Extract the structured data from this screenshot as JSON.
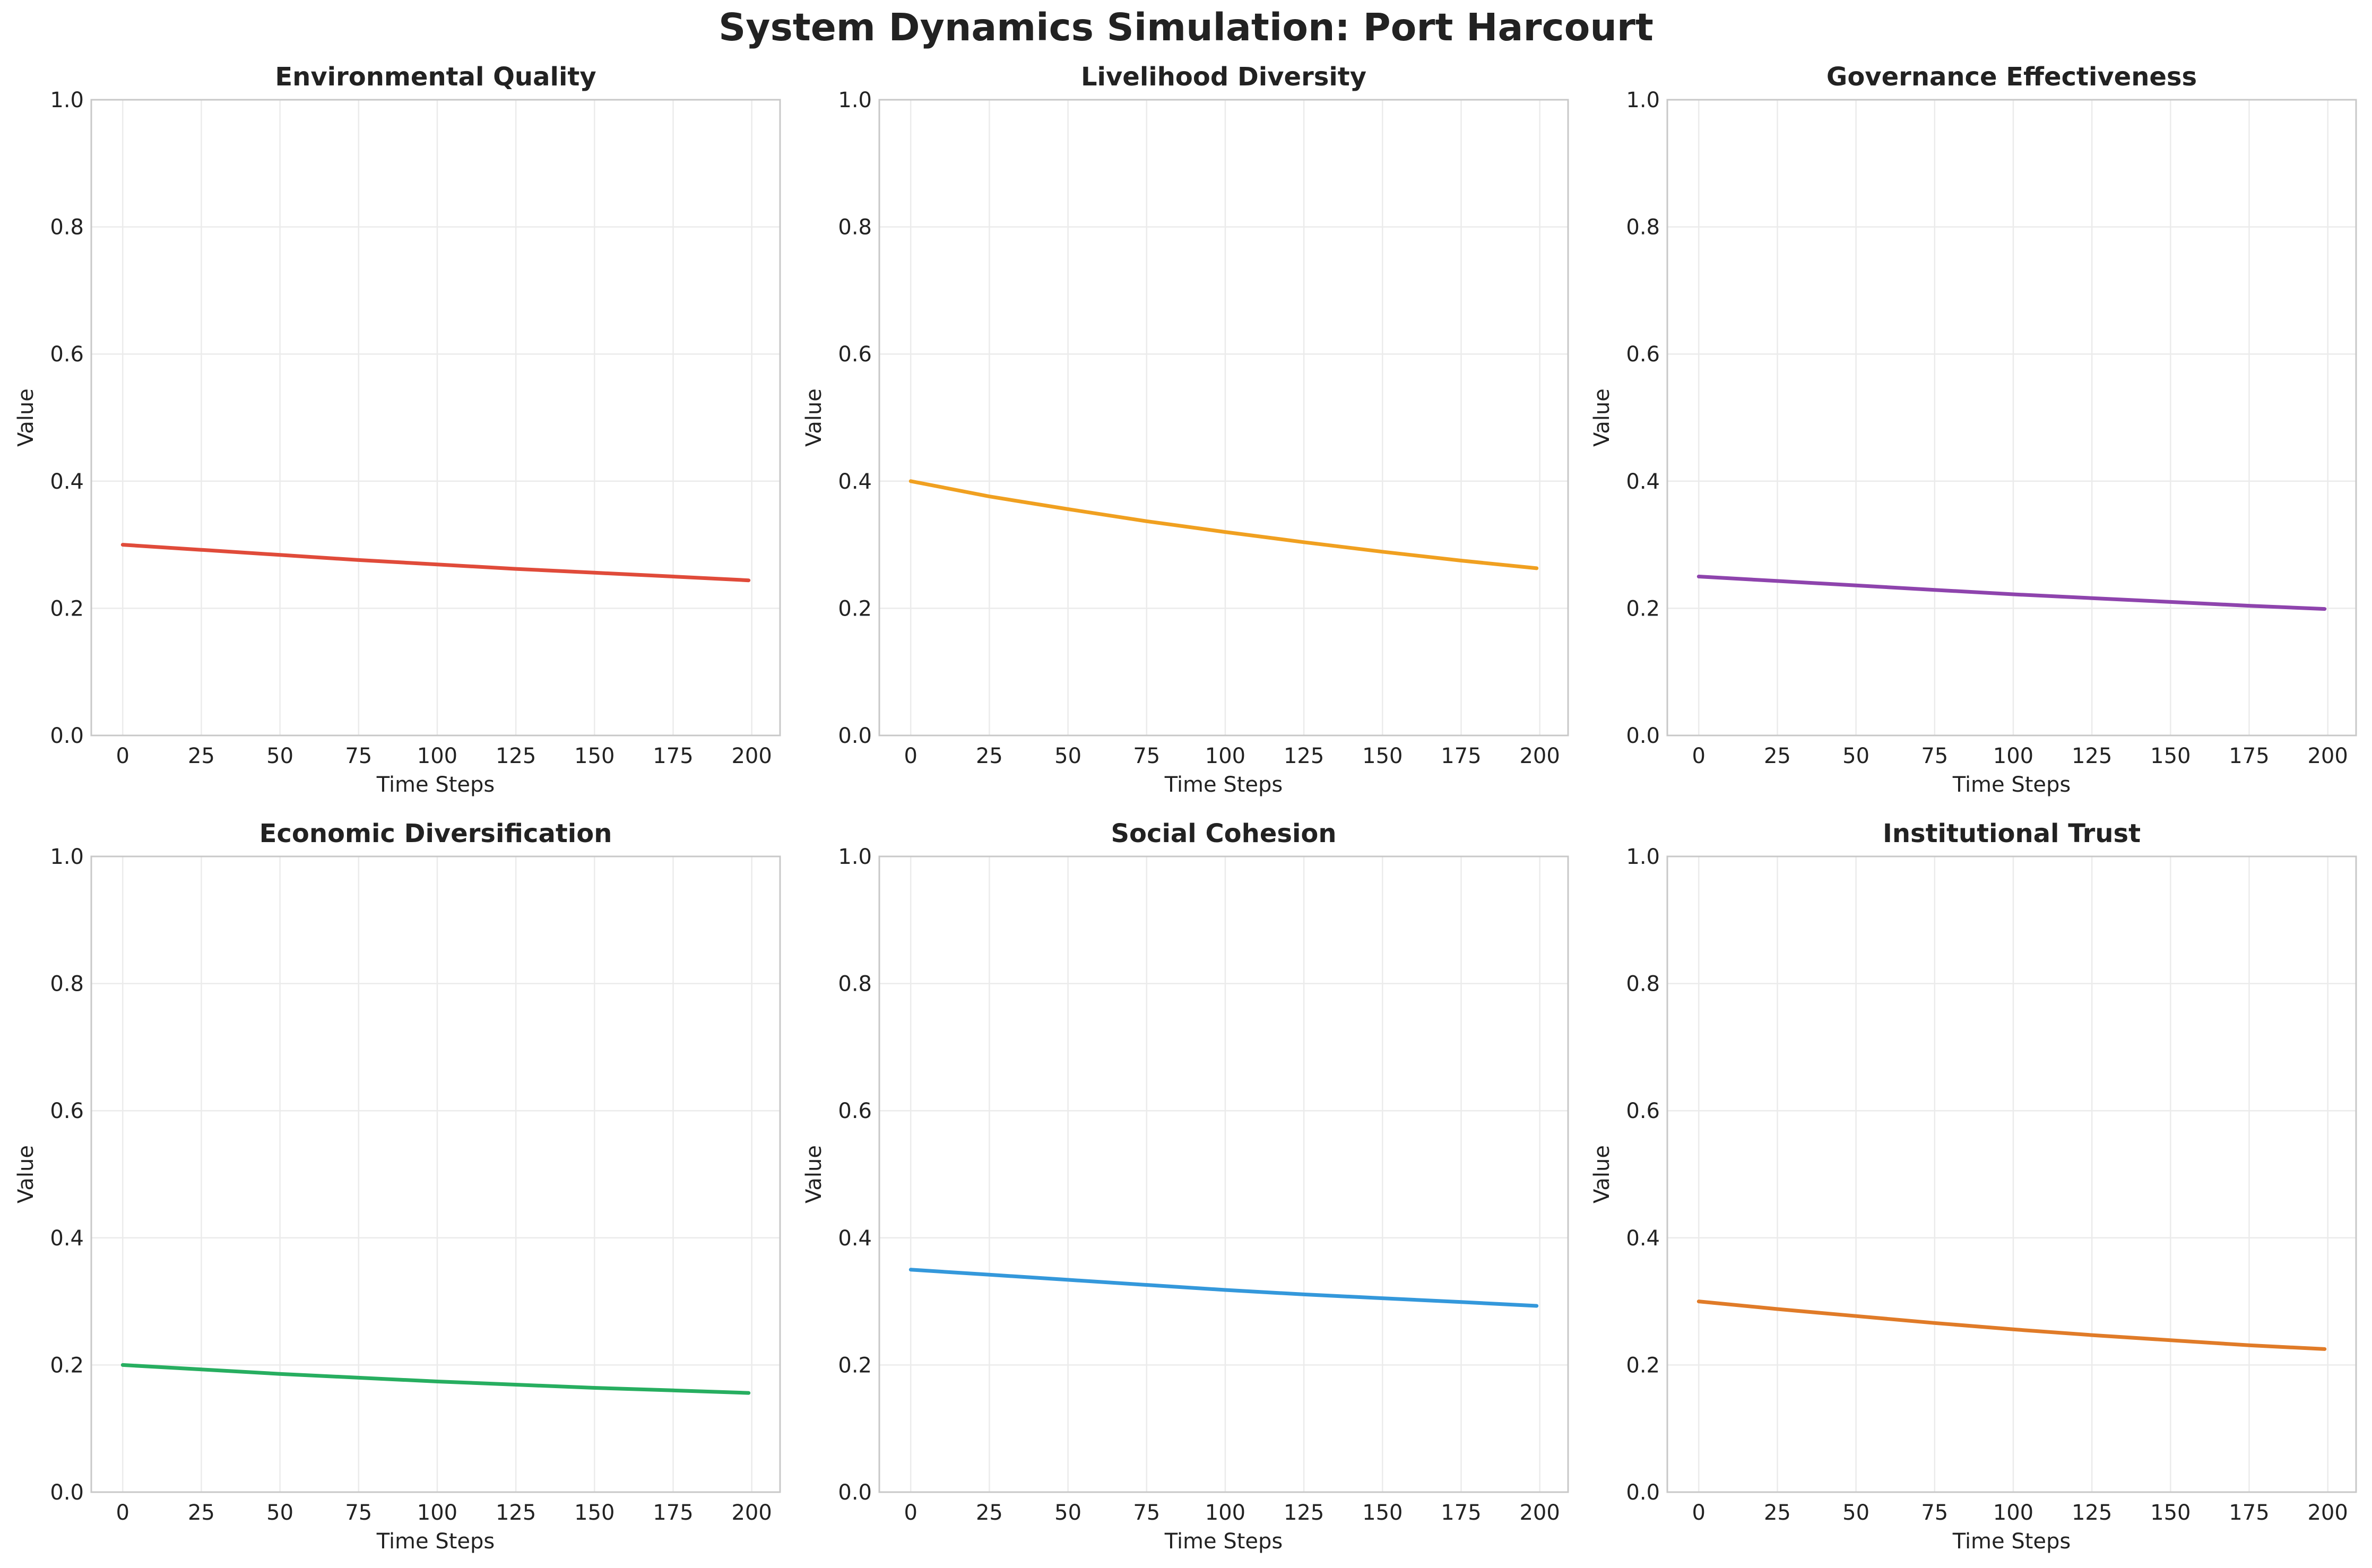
{
  "figure": {
    "title": "System Dynamics Simulation: Port Harcourt"
  },
  "chart_data": [
    {
      "type": "line",
      "title": "Environmental Quality",
      "xlabel": "Time Steps",
      "ylabel": "Value",
      "xlim": [
        -10,
        209
      ],
      "ylim": [
        0,
        1
      ],
      "xticks": [
        0,
        25,
        50,
        75,
        100,
        125,
        150,
        175,
        200
      ],
      "yticks": [
        0.0,
        0.2,
        0.4,
        0.6,
        0.8,
        1.0
      ],
      "grid": true,
      "color": "#e04b3a",
      "x": [
        0,
        25,
        50,
        75,
        100,
        125,
        150,
        175,
        199
      ],
      "y": [
        0.3,
        0.292,
        0.284,
        0.276,
        0.269,
        0.262,
        0.256,
        0.25,
        0.244
      ]
    },
    {
      "type": "line",
      "title": "Livelihood Diversity",
      "xlabel": "Time Steps",
      "ylabel": "Value",
      "xlim": [
        -10,
        209
      ],
      "ylim": [
        0,
        1
      ],
      "xticks": [
        0,
        25,
        50,
        75,
        100,
        125,
        150,
        175,
        200
      ],
      "yticks": [
        0.0,
        0.2,
        0.4,
        0.6,
        0.8,
        1.0
      ],
      "grid": true,
      "color": "#f0a020",
      "x": [
        0,
        25,
        50,
        75,
        100,
        125,
        150,
        175,
        199
      ],
      "y": [
        0.4,
        0.376,
        0.356,
        0.337,
        0.32,
        0.304,
        0.289,
        0.275,
        0.263
      ]
    },
    {
      "type": "line",
      "title": "Governance Effectiveness",
      "xlabel": "Time Steps",
      "ylabel": "Value",
      "xlim": [
        -10,
        209
      ],
      "ylim": [
        0,
        1
      ],
      "xticks": [
        0,
        25,
        50,
        75,
        100,
        125,
        150,
        175,
        200
      ],
      "yticks": [
        0.0,
        0.2,
        0.4,
        0.6,
        0.8,
        1.0
      ],
      "grid": true,
      "color": "#8e44ad",
      "x": [
        0,
        25,
        50,
        75,
        100,
        125,
        150,
        175,
        199
      ],
      "y": [
        0.25,
        0.243,
        0.236,
        0.229,
        0.222,
        0.216,
        0.21,
        0.204,
        0.199
      ]
    },
    {
      "type": "line",
      "title": "Economic Diversification",
      "xlabel": "Time Steps",
      "ylabel": "Value",
      "xlim": [
        -10,
        209
      ],
      "ylim": [
        0,
        1
      ],
      "xticks": [
        0,
        25,
        50,
        75,
        100,
        125,
        150,
        175,
        200
      ],
      "yticks": [
        0.0,
        0.2,
        0.4,
        0.6,
        0.8,
        1.0
      ],
      "grid": true,
      "color": "#27ae60",
      "x": [
        0,
        25,
        50,
        75,
        100,
        125,
        150,
        175,
        199
      ],
      "y": [
        0.2,
        0.193,
        0.186,
        0.18,
        0.174,
        0.169,
        0.164,
        0.16,
        0.156
      ]
    },
    {
      "type": "line",
      "title": "Social Cohesion",
      "xlabel": "Time Steps",
      "ylabel": "Value",
      "xlim": [
        -10,
        209
      ],
      "ylim": [
        0,
        1
      ],
      "xticks": [
        0,
        25,
        50,
        75,
        100,
        125,
        150,
        175,
        200
      ],
      "yticks": [
        0.0,
        0.2,
        0.4,
        0.6,
        0.8,
        1.0
      ],
      "grid": true,
      "color": "#3498db",
      "x": [
        0,
        25,
        50,
        75,
        100,
        125,
        150,
        175,
        199
      ],
      "y": [
        0.35,
        0.342,
        0.334,
        0.326,
        0.318,
        0.311,
        0.305,
        0.299,
        0.293
      ]
    },
    {
      "type": "line",
      "title": "Institutional Trust",
      "xlabel": "Time Steps",
      "ylabel": "Value",
      "xlim": [
        -10,
        209
      ],
      "ylim": [
        0,
        1
      ],
      "xticks": [
        0,
        25,
        50,
        75,
        100,
        125,
        150,
        175,
        200
      ],
      "yticks": [
        0.0,
        0.2,
        0.4,
        0.6,
        0.8,
        1.0
      ],
      "grid": true,
      "color": "#e07b28",
      "x": [
        0,
        25,
        50,
        75,
        100,
        125,
        150,
        175,
        199
      ],
      "y": [
        0.3,
        0.288,
        0.277,
        0.266,
        0.256,
        0.247,
        0.239,
        0.231,
        0.225
      ]
    }
  ]
}
